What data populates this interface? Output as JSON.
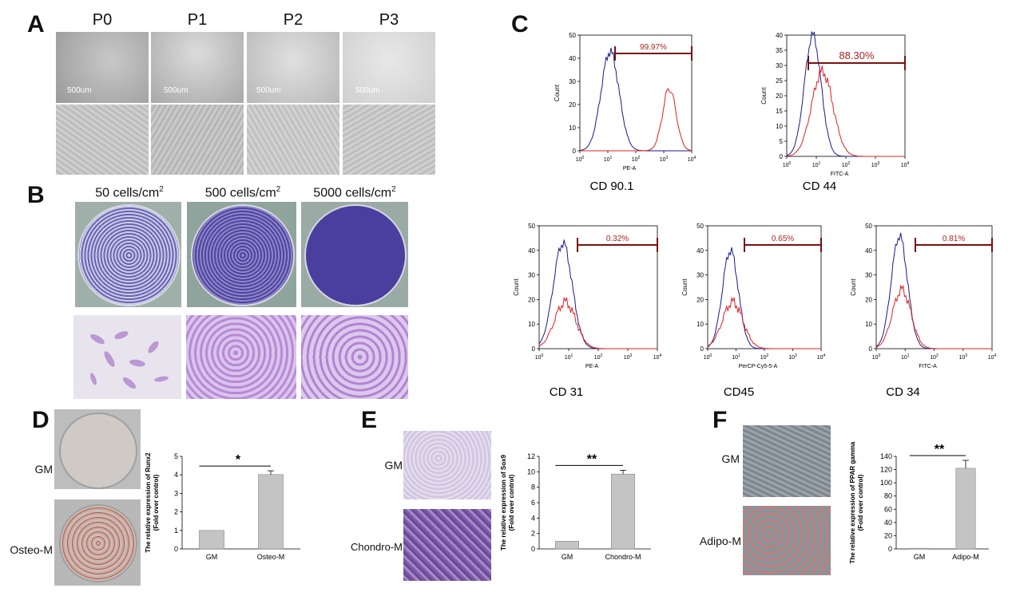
{
  "panels": {
    "A": {
      "label": "A",
      "passages": [
        "P0",
        "P1",
        "P2",
        "P3"
      ],
      "scale_label": "500um"
    },
    "B": {
      "label": "B",
      "densities": [
        "50 cells/cm",
        "500 cells/cm",
        "5000 cells/cm"
      ],
      "density_sup": "2"
    },
    "C": {
      "label": "C",
      "y_axis_label": "Count",
      "x_tick_base": "10",
      "plots": [
        {
          "marker": "CD 90.1",
          "percent": "99.97%",
          "channel": "PE-A",
          "ymax": 50,
          "yticks": [
            0,
            10,
            20,
            30,
            40,
            50
          ]
        },
        {
          "marker": "CD 44",
          "percent": "88.30%",
          "channel": "FITC-A",
          "ymax": 40,
          "yticks": [
            0,
            5,
            10,
            15,
            20,
            25,
            30,
            35,
            40
          ]
        },
        {
          "marker": "CD 31",
          "percent": "0.32%",
          "channel": "PE-A",
          "ymax": 50,
          "yticks": [
            0,
            10,
            20,
            30,
            40,
            50
          ]
        },
        {
          "marker": "CD45",
          "percent": "0.65%",
          "channel": "PerCP-Cy5-5-A",
          "ymax": 50,
          "yticks": [
            0,
            10,
            20,
            30,
            40,
            50
          ]
        },
        {
          "marker": "CD 34",
          "percent": "0.81%",
          "channel": "FITC-A",
          "ymax": 50,
          "yticks": [
            0,
            10,
            20,
            30,
            40,
            50
          ]
        }
      ]
    },
    "D": {
      "label": "D",
      "conditions": [
        "GM",
        "Osteo-M"
      ]
    },
    "E": {
      "label": "E",
      "conditions": [
        "GM",
        "Chondro-M"
      ]
    },
    "F": {
      "label": "F",
      "conditions": [
        "GM",
        "Adipo-M"
      ]
    }
  },
  "chart_data": [
    {
      "type": "bar",
      "panel": "D",
      "categories": [
        "GM",
        "Osteo-M"
      ],
      "values": [
        1,
        4.02
      ],
      "errors": [
        0,
        0.2
      ],
      "ylabel": "The relative expression of Runx2 (Fold over control)",
      "ylabel_lines": [
        "The relative expression of Runx2",
        "(Fold over control)"
      ],
      "ylim": [
        0,
        5
      ],
      "yticks": [
        0,
        1,
        2,
        3,
        4,
        5
      ],
      "significance": "*"
    },
    {
      "type": "bar",
      "panel": "E",
      "categories": [
        "GM",
        "Chondro-M"
      ],
      "values": [
        1,
        9.7
      ],
      "errors": [
        0,
        0.5
      ],
      "ylabel": "The relative expression of Sox9 (Fold over control)",
      "ylabel_lines": [
        "The relative expression of Sox9",
        "(Fold over control)"
      ],
      "ylim": [
        0,
        12
      ],
      "yticks": [
        0,
        2,
        4,
        6,
        8,
        10,
        12
      ],
      "significance": "**"
    },
    {
      "type": "bar",
      "panel": "F",
      "categories": [
        "GM",
        "Adipo-M"
      ],
      "values": [
        1,
        122
      ],
      "errors": [
        0,
        12
      ],
      "ylabel": "The relative expression of PPAR gamma (Fold over control)",
      "ylabel_lines": [
        "The relative expression of PPAR gamma",
        "(Fold over control)"
      ],
      "ylim": [
        0,
        140
      ],
      "yticks": [
        0,
        20,
        40,
        60,
        80,
        100,
        120,
        140
      ],
      "significance": "**"
    }
  ],
  "colors": {
    "bar_fill": "#c4c4c4",
    "gate": "#7a1010",
    "gate_text": "#b02020",
    "control_hist": "#1a1a8c",
    "sample_hist": "#e02020",
    "crystal_violet": "#5b4fa8"
  }
}
